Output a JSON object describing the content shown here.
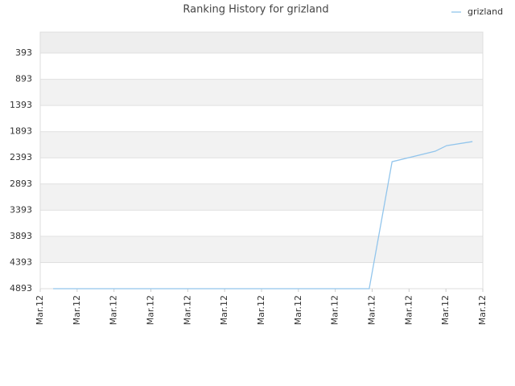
{
  "chart_data": {
    "type": "line",
    "title": "Ranking History for grizland",
    "x": [
      0.35,
      8.92,
      9.54,
      10.71,
      11.02,
      11.72
    ],
    "series": [
      {
        "name": "grizland",
        "color": "#92c5ec",
        "values": [
          4893,
          4893,
          2467,
          2267,
          2160,
          2083
        ]
      }
    ],
    "xlim": [
      0,
      12
    ],
    "xticks": [
      {
        "value": 0,
        "label": "Mar.12"
      },
      {
        "value": 1,
        "label": "Mar.12"
      },
      {
        "value": 2,
        "label": "Mar.12"
      },
      {
        "value": 3,
        "label": "Mar.12"
      },
      {
        "value": 4,
        "label": "Mar.12"
      },
      {
        "value": 5,
        "label": "Mar.12"
      },
      {
        "value": 6,
        "label": "Mar.12"
      },
      {
        "value": 7,
        "label": "Mar.12"
      },
      {
        "value": 8,
        "label": "Mar.12"
      },
      {
        "value": 9,
        "label": "Mar.12"
      },
      {
        "value": 10,
        "label": "Mar.12"
      },
      {
        "value": 11,
        "label": "Mar.12"
      },
      {
        "value": 12,
        "label": "Mar.12"
      }
    ],
    "ylim": [
      4893,
      -7
    ],
    "yticks": [
      393,
      893,
      1393,
      1893,
      2393,
      2893,
      3393,
      3893,
      4393,
      4893
    ],
    "grid": true,
    "legend": "top-right"
  }
}
